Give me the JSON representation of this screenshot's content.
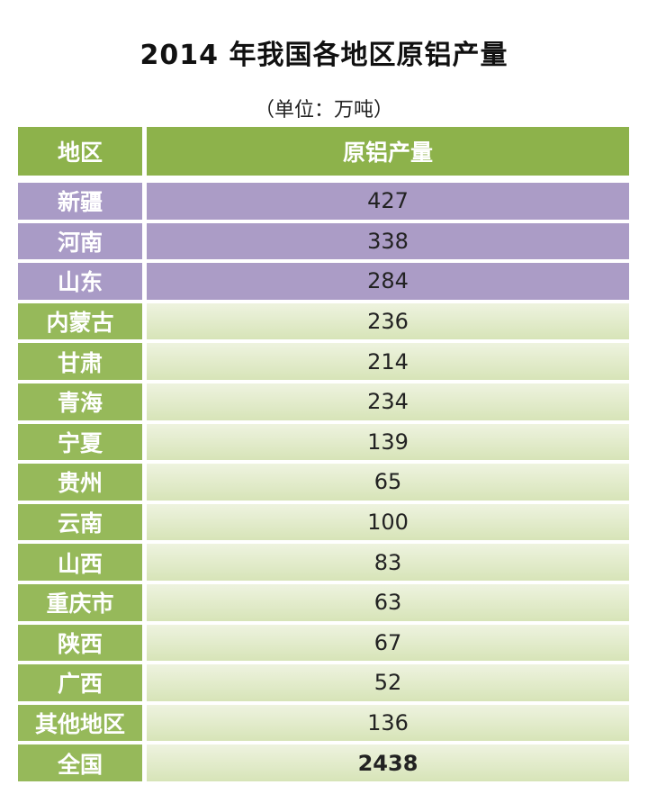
{
  "title": "2014 年我国各地区原铝产量",
  "unit": "（单位：万吨）",
  "table": {
    "headers": [
      "地区",
      "原铝产量"
    ],
    "rows": [
      {
        "region": "新疆",
        "value": "427",
        "style": "purple"
      },
      {
        "region": "河南",
        "value": "338",
        "style": "purple"
      },
      {
        "region": "山东",
        "value": "284",
        "style": "purple"
      },
      {
        "region": "内蒙古",
        "value": "236",
        "style": "green"
      },
      {
        "region": "甘肃",
        "value": "214",
        "style": "green"
      },
      {
        "region": "青海",
        "value": "234",
        "style": "green"
      },
      {
        "region": "宁夏",
        "value": "139",
        "style": "green"
      },
      {
        "region": "贵州",
        "value": "65",
        "style": "green"
      },
      {
        "region": "云南",
        "value": "100",
        "style": "green"
      },
      {
        "region": "山西",
        "value": "83",
        "style": "green"
      },
      {
        "region": "重庆市",
        "value": "63",
        "style": "green"
      },
      {
        "region": "陕西",
        "value": "67",
        "style": "green"
      },
      {
        "region": "广西",
        "value": "52",
        "style": "green"
      },
      {
        "region": "其他地区",
        "value": "136",
        "style": "green"
      },
      {
        "region": "全国",
        "value": "2438",
        "style": "green total"
      }
    ]
  },
  "colors": {
    "header": "#8db24b",
    "highlight": "#ab9cc6",
    "region_cell": "#96b95a",
    "value_cell": "#e3ebcb"
  }
}
